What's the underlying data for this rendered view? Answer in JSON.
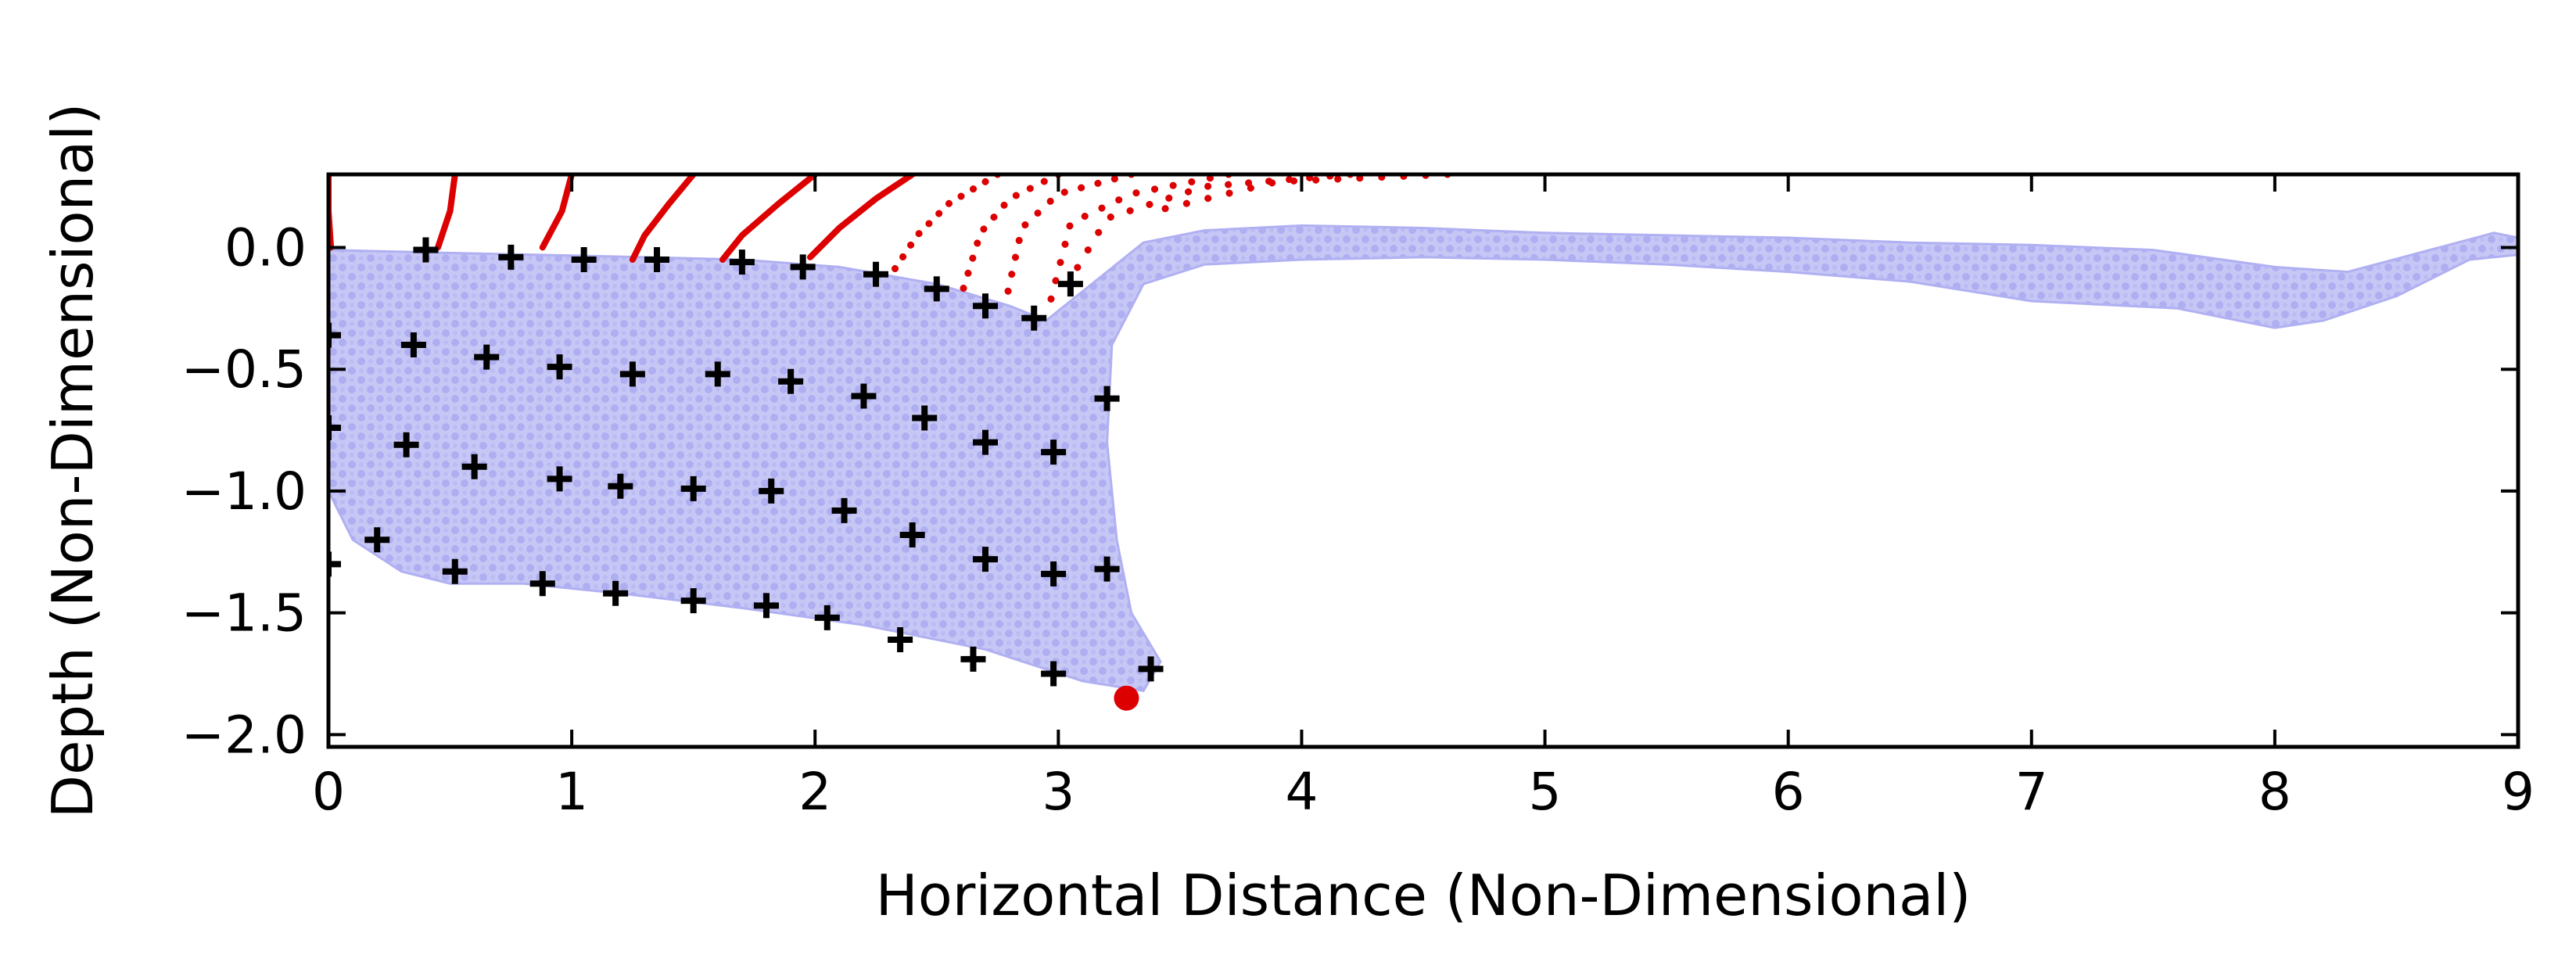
{
  "chart_data": {
    "type": "scatter",
    "title": "",
    "xlabel": "Horizontal Distance (Non-Dimensional)",
    "ylabel": "Depth (Non-Dimensional)",
    "xlim": [
      0,
      9
    ],
    "ylim": [
      -2.05,
      0.3
    ],
    "xticks": [
      0,
      1,
      2,
      3,
      4,
      5,
      6,
      7,
      8,
      9
    ],
    "xtick_labels": [
      "0",
      "1",
      "2",
      "3",
      "4",
      "5",
      "6",
      "7",
      "8",
      "9"
    ],
    "yticks": [
      0.0,
      -0.5,
      -1.0,
      -1.5,
      -2.0
    ],
    "ytick_labels": [
      "0.0",
      "−0.5",
      "−1.0",
      "−1.5",
      "−2.0"
    ],
    "grid": false,
    "colors": {
      "fluid": "#6f6fe8",
      "markers": "#000000",
      "trajectories": "#dd0000",
      "point": "#dd0000"
    },
    "fluid_region": {
      "description_color": "#6f6fe8",
      "outline": [
        [
          0.0,
          -0.01
        ],
        [
          0.4,
          -0.02
        ],
        [
          0.85,
          -0.03
        ],
        [
          1.3,
          -0.04
        ],
        [
          1.7,
          -0.05
        ],
        [
          2.1,
          -0.08
        ],
        [
          2.5,
          -0.15
        ],
        [
          2.8,
          -0.24
        ],
        [
          2.95,
          -0.3
        ],
        [
          3.1,
          -0.18
        ],
        [
          3.35,
          0.02
        ],
        [
          3.6,
          0.07
        ],
        [
          4.0,
          0.09
        ],
        [
          4.5,
          0.08
        ],
        [
          5.0,
          0.06
        ],
        [
          5.5,
          0.05
        ],
        [
          6.0,
          0.04
        ],
        [
          6.5,
          0.02
        ],
        [
          7.0,
          0.01
        ],
        [
          7.5,
          -0.01
        ],
        [
          8.0,
          -0.08
        ],
        [
          8.3,
          -0.1
        ],
        [
          8.6,
          -0.02
        ],
        [
          8.9,
          0.06
        ],
        [
          9.0,
          0.04
        ],
        [
          9.0,
          -0.03
        ],
        [
          8.8,
          -0.05
        ],
        [
          8.5,
          -0.2
        ],
        [
          8.2,
          -0.3
        ],
        [
          8.0,
          -0.33
        ],
        [
          7.6,
          -0.25
        ],
        [
          7.0,
          -0.22
        ],
        [
          6.5,
          -0.14
        ],
        [
          6.0,
          -0.1
        ],
        [
          5.5,
          -0.07
        ],
        [
          5.0,
          -0.05
        ],
        [
          4.5,
          -0.04
        ],
        [
          4.0,
          -0.05
        ],
        [
          3.6,
          -0.07
        ],
        [
          3.35,
          -0.15
        ],
        [
          3.22,
          -0.4
        ],
        [
          3.2,
          -0.8
        ],
        [
          3.24,
          -1.2
        ],
        [
          3.3,
          -1.5
        ],
        [
          3.42,
          -1.7
        ],
        [
          3.35,
          -1.82
        ],
        [
          3.1,
          -1.78
        ],
        [
          2.7,
          -1.65
        ],
        [
          2.2,
          -1.55
        ],
        [
          1.7,
          -1.48
        ],
        [
          1.2,
          -1.42
        ],
        [
          0.8,
          -1.38
        ],
        [
          0.5,
          -1.38
        ],
        [
          0.3,
          -1.33
        ],
        [
          0.1,
          -1.2
        ],
        [
          0.0,
          -1.0
        ]
      ]
    },
    "series": [
      {
        "marker": "+",
        "points": [
          [
            0.4,
            -0.01
          ],
          [
            0.75,
            -0.04
          ],
          [
            1.05,
            -0.05
          ],
          [
            1.35,
            -0.05
          ],
          [
            1.7,
            -0.06
          ],
          [
            1.95,
            -0.08
          ],
          [
            2.25,
            -0.11
          ],
          [
            2.5,
            -0.17
          ],
          [
            2.7,
            -0.24
          ],
          [
            2.9,
            -0.29
          ],
          [
            3.05,
            -0.15
          ],
          [
            0.0,
            -0.36
          ],
          [
            0.35,
            -0.4
          ],
          [
            0.65,
            -0.45
          ],
          [
            0.95,
            -0.49
          ],
          [
            1.25,
            -0.52
          ],
          [
            1.6,
            -0.52
          ],
          [
            1.9,
            -0.55
          ],
          [
            2.2,
            -0.61
          ],
          [
            2.45,
            -0.7
          ],
          [
            2.7,
            -0.8
          ],
          [
            2.98,
            -0.84
          ],
          [
            3.2,
            -0.62
          ],
          [
            0.0,
            -0.74
          ],
          [
            0.32,
            -0.81
          ],
          [
            0.6,
            -0.9
          ],
          [
            0.95,
            -0.95
          ],
          [
            1.2,
            -0.98
          ],
          [
            1.5,
            -0.99
          ],
          [
            1.82,
            -1.0
          ],
          [
            2.12,
            -1.08
          ],
          [
            2.4,
            -1.18
          ],
          [
            2.7,
            -1.28
          ],
          [
            2.98,
            -1.34
          ],
          [
            3.2,
            -1.32
          ],
          [
            0.0,
            -1.3
          ],
          [
            0.2,
            -1.2
          ],
          [
            0.52,
            -1.33
          ],
          [
            0.88,
            -1.38
          ],
          [
            1.18,
            -1.42
          ],
          [
            1.5,
            -1.45
          ],
          [
            1.8,
            -1.47
          ],
          [
            2.05,
            -1.52
          ],
          [
            2.35,
            -1.61
          ],
          [
            2.65,
            -1.69
          ],
          [
            2.98,
            -1.75
          ],
          [
            3.38,
            -1.73
          ]
        ]
      },
      {
        "name": "",
        "marker": "trajectory",
        "paths": [
          [
            [
              0.0,
              0.3
            ],
            [
              0.0,
              0.15
            ],
            [
              0.01,
              0.0
            ]
          ],
          [
            [
              0.52,
              0.3
            ],
            [
              0.5,
              0.15
            ],
            [
              0.45,
              0.0
            ]
          ],
          [
            [
              1.0,
              0.3
            ],
            [
              0.96,
              0.15
            ],
            [
              0.88,
              0.0
            ]
          ],
          [
            [
              1.5,
              0.3
            ],
            [
              1.4,
              0.18
            ],
            [
              1.3,
              0.05
            ],
            [
              1.25,
              -0.05
            ]
          ],
          [
            [
              2.0,
              0.3
            ],
            [
              1.85,
              0.18
            ],
            [
              1.7,
              0.05
            ],
            [
              1.62,
              -0.05
            ]
          ],
          [
            [
              2.4,
              0.3
            ],
            [
              2.25,
              0.2
            ],
            [
              2.1,
              0.08
            ],
            [
              1.98,
              -0.04
            ]
          ],
          [
            [
              2.75,
              0.3
            ],
            [
              2.55,
              0.18
            ],
            [
              2.42,
              0.05
            ],
            [
              2.3,
              -0.13
            ]
          ],
          [
            [
              3.0,
              0.3
            ],
            [
              2.8,
              0.2
            ],
            [
              2.68,
              0.06
            ],
            [
              2.6,
              -0.2
            ]
          ],
          [
            [
              3.3,
              0.3
            ],
            [
              3.0,
              0.22
            ],
            [
              2.85,
              0.08
            ],
            [
              2.78,
              -0.24
            ]
          ],
          [
            [
              3.7,
              0.3
            ],
            [
              3.3,
              0.22
            ],
            [
              3.05,
              0.1
            ],
            [
              2.96,
              -0.25
            ]
          ],
          [
            [
              4.2,
              0.3
            ],
            [
              3.6,
              0.25
            ],
            [
              3.2,
              0.12
            ],
            [
              3.05,
              -0.13
            ]
          ],
          [
            [
              4.6,
              0.3
            ],
            [
              3.9,
              0.27
            ],
            [
              3.4,
              0.15
            ]
          ]
        ]
      },
      {
        "marker": "o",
        "points": [
          [
            3.28,
            -1.85
          ]
        ]
      }
    ]
  }
}
